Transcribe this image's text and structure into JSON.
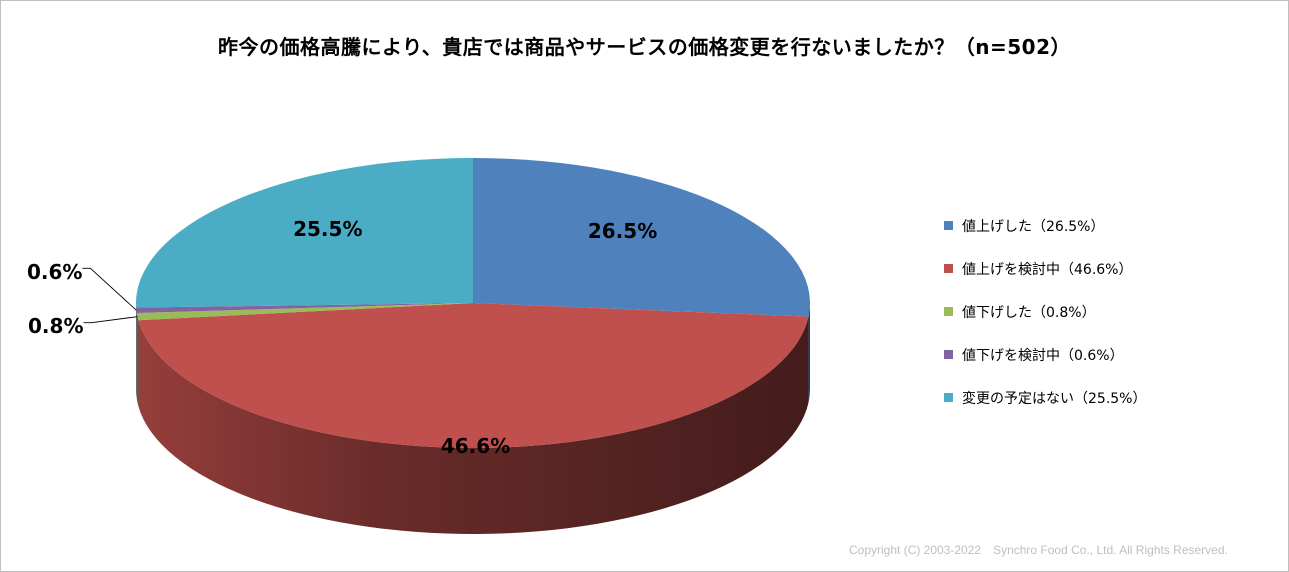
{
  "chart_data": {
    "type": "pie",
    "title": "昨今の価格高騰により、貴店では商品やサービスの価格変更を行ないましたか？（n=502）",
    "categories": [
      "値上げした",
      "値上げを検討中",
      "値下げした",
      "値下げを検討中",
      "変更の予定はない"
    ],
    "values": [
      26.5,
      46.6,
      0.8,
      0.6,
      25.5
    ],
    "data_labels": [
      "26.5%",
      "46.6%",
      "0.8%",
      "0.6%",
      "25.5%"
    ],
    "legend_labels": [
      "値上げした（26.5%）",
      "値上げを検討中（46.6%）",
      "値下げした（0.8%）",
      "値下げを検討中（0.6%）",
      "変更の予定はない（25.5%）"
    ],
    "colors": [
      "#4F81BD",
      "#C0504D",
      "#9BBB59",
      "#8064A2",
      "#4BACC6"
    ],
    "legend_position": "right",
    "style": "3d-pie"
  },
  "copyright": "Copyright (C) 2003-2022　Synchro Food Co., Ltd. All Rights Reserved."
}
